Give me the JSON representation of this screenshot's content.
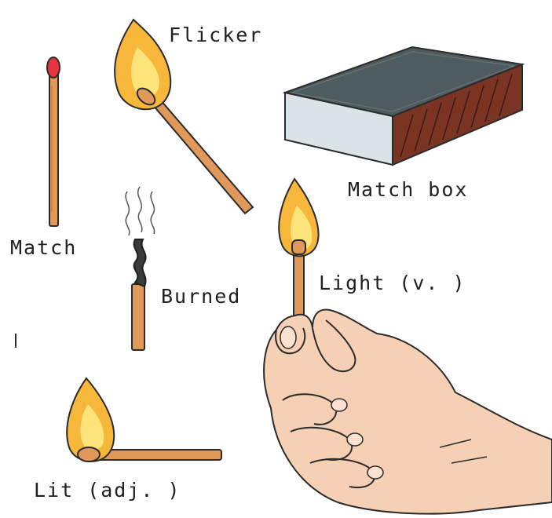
{
  "labels": {
    "flicker": "Flicker",
    "match_box": "Match box",
    "match": "Match",
    "burned": "Burned",
    "light": "Light (v. )",
    "lit": "Lit (adj. )"
  },
  "colors": {
    "stick": "#e0995a",
    "match_head": "#e8343c",
    "flame_outer": "#f6b73a",
    "flame_inner": "#fce47a",
    "box_top": "#4e5b5f",
    "box_side": "#d9e3e8",
    "box_striker": "#7a3424",
    "skin": "#f6d0b4",
    "charred": "#3a3a3a"
  }
}
